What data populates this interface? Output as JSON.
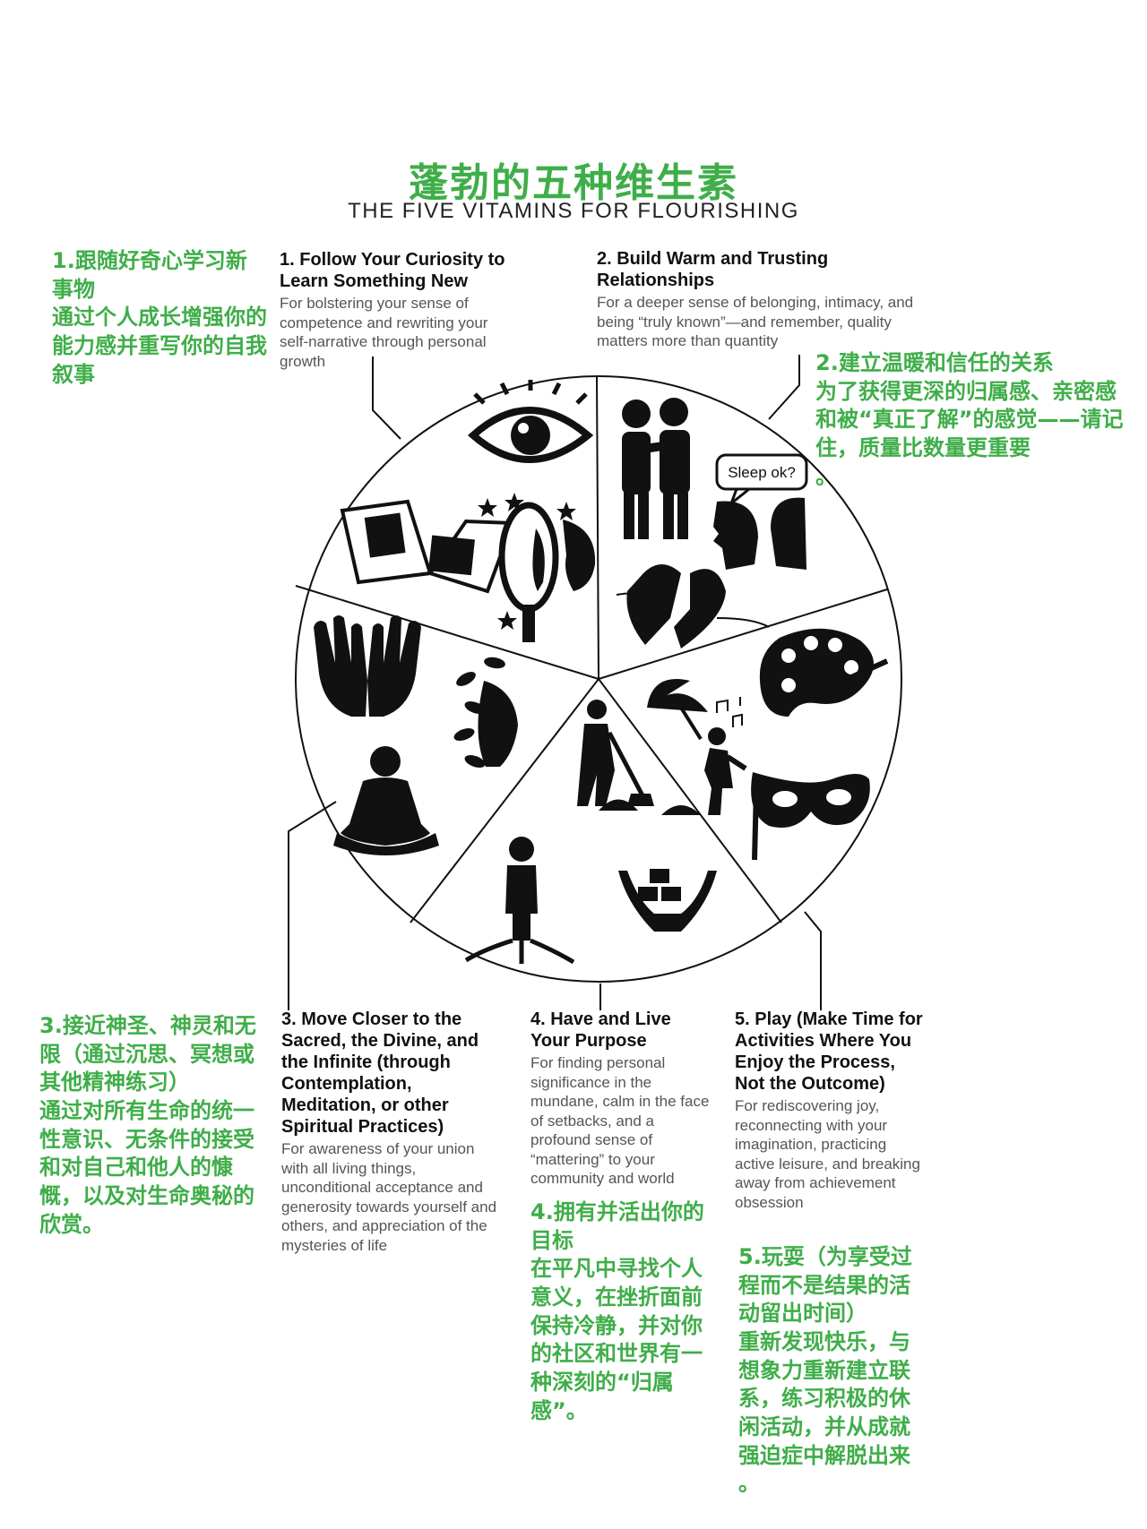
{
  "title_cn": "蓬勃的五种维生素",
  "title_en": "THE FIVE VITAMINS FOR FLOURISHING",
  "sections": [
    {
      "heading": "1. Follow Your Curiosity to Learn Something New",
      "body": "For bolstering your sense of competence and rewriting your self-narrative through personal growth",
      "cn": "1.跟随好奇心学习新事物\n通过个人成长增强你的能力感并重写你的自我叙事"
    },
    {
      "heading": "2. Build Warm and Trusting Relationships",
      "body": "For a deeper sense of belonging, intimacy, and being “truly known”—and remember, quality matters more than quantity",
      "cn": "2.建立温暖和信任的关系\n为了获得更深的归属感、亲密感和被“真正了解”的感觉——请记住，质量比数量更重要\n。"
    },
    {
      "heading": "3. Move Closer to the Sacred, the Divine, and the Infinite (through Contemplation, Meditation, or other Spiritual Practices)",
      "body": "For awareness of your union with all living things, unconditional acceptance and generosity towards yourself and others, and appreciation of the mysteries of life",
      "cn": "3.接近神圣、神灵和无限（通过沉思、冥想或其他精神练习）\n通过对所有生命的统一性意识、无条件的接受和对自己和他人的慷慨，以及对生命奥秘的欣赏。"
    },
    {
      "heading": "4. Have and Live Your Purpose",
      "body": "For finding personal significance in the mundane, calm in the face of setbacks, and a profound sense of “mattering” to your community and world",
      "cn": "4.拥有并活出你的目标\n在平凡中寻找个人意义，在挫折面前保持冷静，并对你的社区和世界有一种深刻的“归属感”。"
    },
    {
      "heading": "5. Play (Make Time for Activities Where You Enjoy the Process, Not the Outcome)",
      "body": "For rediscovering joy, reconnecting with your imagination, practicing active leisure, and breaking away from achievement obsession",
      "cn": "5.玩耍（为享受过程而不是结果的活动留出时间）\n重新发现快乐，与想象力重新建立联系，练习积极的休闲活动，并从成就强迫症中解脱出来\n。"
    }
  ],
  "speech_bubble": "Sleep ok?",
  "icons": [
    "eye-icon",
    "book-icon",
    "mirror-icon",
    "star-icon",
    "hug-icon",
    "faces-icon",
    "heart-icon",
    "palette-icon",
    "umbrella-icon",
    "music-notes-icon",
    "mask-icon",
    "hands-icon",
    "meditation-icon",
    "leaf-face-icon",
    "shovel-icon",
    "rooted-person-icon",
    "giving-hands-icon"
  ],
  "colors": {
    "accent_green": "#3fae49",
    "ink": "#111111"
  }
}
